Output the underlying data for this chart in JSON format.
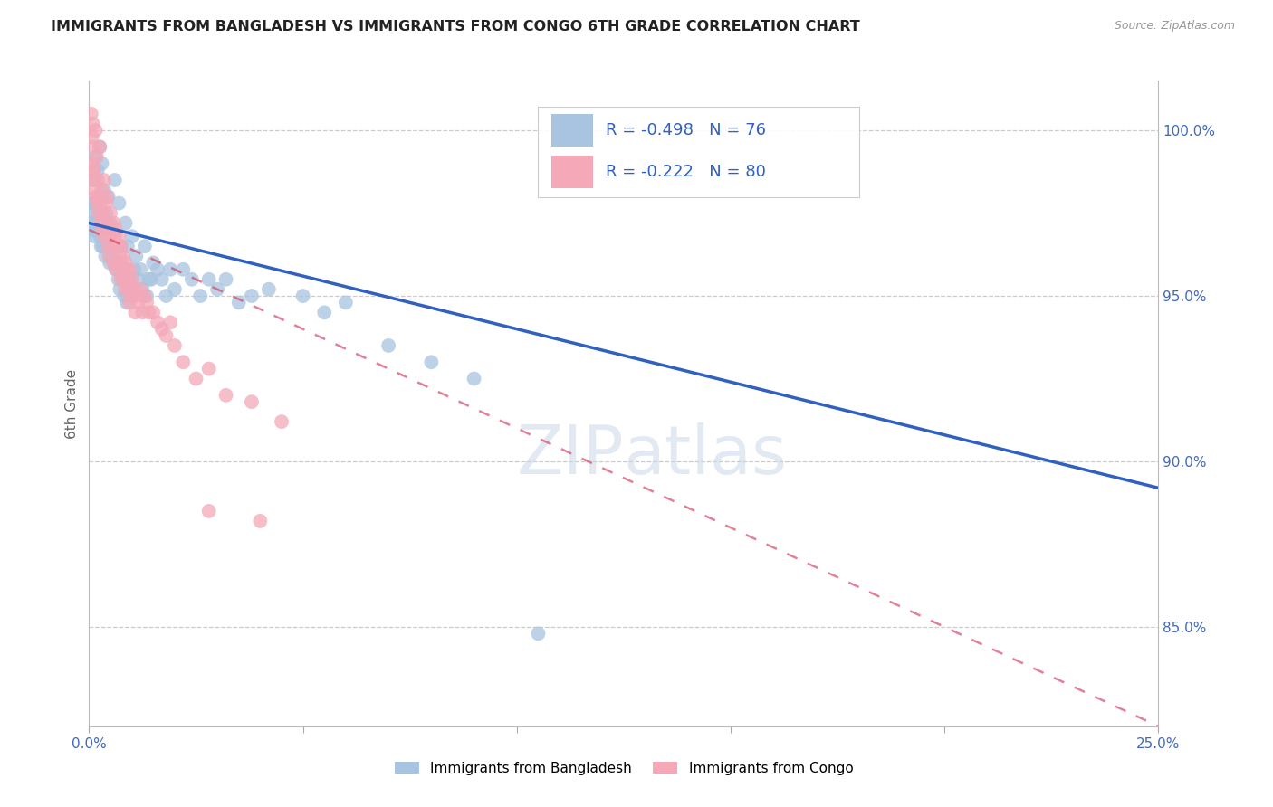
{
  "title": "IMMIGRANTS FROM BANGLADESH VS IMMIGRANTS FROM CONGO 6TH GRADE CORRELATION CHART",
  "source": "Source: ZipAtlas.com",
  "ylabel": "6th Grade",
  "xlim": [
    0.0,
    25.0
  ],
  "ylim": [
    82.0,
    101.5
  ],
  "R_bangladesh": -0.498,
  "N_bangladesh": 76,
  "R_congo": -0.222,
  "N_congo": 80,
  "color_bangladesh": "#a8c4e0",
  "color_congo": "#f4a8b8",
  "color_trendline_bangladesh": "#3060c0",
  "color_trendline_congo": "#d04060",
  "legend_label_bangladesh": "Immigrants from Bangladesh",
  "legend_label_congo": "Immigrants from Congo",
  "bangladesh_x": [
    0.05,
    0.08,
    0.1,
    0.12,
    0.15,
    0.18,
    0.2,
    0.22,
    0.25,
    0.28,
    0.3,
    0.35,
    0.4,
    0.45,
    0.5,
    0.55,
    0.6,
    0.65,
    0.7,
    0.75,
    0.8,
    0.85,
    0.9,
    0.95,
    1.0,
    1.1,
    1.2,
    1.3,
    1.4,
    1.5,
    1.6,
    1.7,
    1.8,
    1.9,
    2.0,
    2.2,
    2.4,
    2.6,
    2.8,
    3.0,
    3.2,
    3.5,
    3.8,
    4.2,
    5.0,
    5.5,
    6.0,
    7.0,
    8.0,
    9.0,
    0.06,
    0.09,
    0.13,
    0.17,
    0.21,
    0.26,
    0.32,
    0.38,
    0.42,
    0.48,
    0.52,
    0.58,
    0.62,
    0.68,
    0.72,
    0.78,
    0.82,
    0.88,
    0.92,
    0.98,
    1.05,
    1.15,
    1.25,
    1.35,
    1.45,
    10.5
  ],
  "bangladesh_y": [
    97.2,
    97.8,
    98.5,
    96.8,
    99.2,
    97.0,
    98.8,
    97.5,
    99.5,
    96.5,
    99.0,
    98.2,
    97.5,
    98.0,
    97.2,
    96.8,
    98.5,
    96.0,
    97.8,
    96.5,
    95.8,
    97.2,
    96.5,
    95.5,
    96.8,
    96.2,
    95.8,
    96.5,
    95.5,
    96.0,
    95.8,
    95.5,
    95.0,
    95.8,
    95.2,
    95.8,
    95.5,
    95.0,
    95.5,
    95.2,
    95.5,
    94.8,
    95.0,
    95.2,
    95.0,
    94.5,
    94.8,
    93.5,
    93.0,
    92.5,
    97.5,
    97.0,
    97.8,
    97.2,
    97.0,
    96.8,
    96.5,
    96.2,
    96.5,
    96.0,
    96.2,
    96.0,
    95.8,
    95.5,
    95.2,
    95.5,
    95.0,
    94.8,
    95.2,
    95.0,
    95.8,
    95.5,
    95.2,
    95.0,
    95.5,
    84.8
  ],
  "congo_x": [
    0.05,
    0.07,
    0.09,
    0.1,
    0.12,
    0.15,
    0.18,
    0.2,
    0.22,
    0.25,
    0.28,
    0.3,
    0.32,
    0.35,
    0.38,
    0.4,
    0.42,
    0.45,
    0.48,
    0.5,
    0.52,
    0.55,
    0.58,
    0.6,
    0.62,
    0.65,
    0.68,
    0.7,
    0.72,
    0.75,
    0.78,
    0.8,
    0.82,
    0.85,
    0.88,
    0.9,
    0.92,
    0.95,
    0.98,
    1.0,
    1.05,
    1.1,
    1.15,
    1.2,
    1.25,
    1.3,
    1.35,
    1.4,
    1.5,
    1.6,
    1.7,
    1.8,
    1.9,
    2.0,
    2.2,
    2.5,
    2.8,
    3.2,
    3.8,
    4.5,
    0.06,
    0.08,
    0.11,
    0.14,
    0.16,
    0.19,
    0.23,
    0.27,
    0.31,
    0.36,
    0.44,
    0.47,
    0.56,
    0.64,
    0.74,
    0.84,
    0.94,
    1.08,
    2.8,
    4.0
  ],
  "congo_y": [
    100.5,
    99.8,
    100.2,
    99.5,
    98.8,
    100.0,
    99.2,
    98.5,
    98.0,
    99.5,
    97.8,
    98.2,
    97.5,
    98.5,
    97.0,
    97.8,
    98.0,
    97.2,
    96.8,
    97.5,
    97.0,
    96.5,
    97.2,
    96.8,
    97.0,
    96.5,
    96.0,
    96.8,
    96.2,
    96.5,
    95.8,
    96.2,
    95.5,
    96.0,
    95.8,
    95.5,
    95.2,
    95.8,
    95.0,
    95.5,
    95.2,
    95.0,
    94.8,
    95.2,
    94.5,
    95.0,
    94.8,
    94.5,
    94.5,
    94.2,
    94.0,
    93.8,
    94.2,
    93.5,
    93.0,
    92.5,
    92.8,
    92.0,
    91.8,
    91.2,
    99.0,
    98.8,
    98.5,
    98.2,
    98.0,
    97.8,
    97.5,
    97.2,
    97.0,
    96.8,
    96.5,
    96.2,
    96.0,
    95.8,
    95.5,
    95.2,
    94.8,
    94.5,
    88.5,
    88.2
  ]
}
